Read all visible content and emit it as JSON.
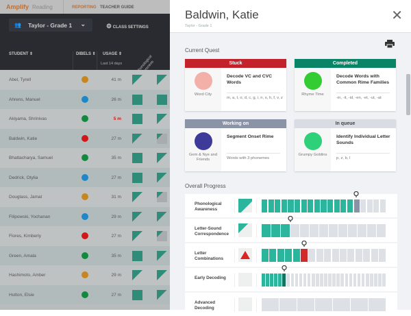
{
  "nav": {
    "brand": "Amplify",
    "product": "Reading",
    "tabs": [
      "REPORTING",
      "TEACHER GUIDE"
    ]
  },
  "toolbar": {
    "class": "Taylor - Grade 1",
    "settings": "CLASS SETTINGS"
  },
  "table": {
    "headers": {
      "student": "STUDENT ⇕",
      "dibels": "DIBELS ⇕",
      "usage": "USAGE ⇕",
      "usage_sub": "Last 14 days",
      "skill": "Phonological Awareness"
    },
    "rows": [
      {
        "name": "Abel, Tyrell",
        "dibels": "#c8861e",
        "usage": "41 m",
        "s1": "half",
        "s2": "half"
      },
      {
        "name": "Ahrens, Manuel",
        "dibels": "#1a88c9",
        "usage": "26 m",
        "s1": "full",
        "s2": "full"
      },
      {
        "name": "Akiyama, Shrinivas",
        "dibels": "#128a3e",
        "usage": "5 m",
        "warn": true,
        "s1": "full",
        "s2": "half"
      },
      {
        "name": "Baldwin, Katie",
        "dibels": "#d01818",
        "usage": "27 m",
        "s1": "half",
        "s2": "part"
      },
      {
        "name": "Bhattacharya, Samuel",
        "dibels": "#128a3e",
        "usage": "35 m",
        "s1": "full",
        "s2": "half"
      },
      {
        "name": "Dedrick, Otylia",
        "dibels": "#1a88c9",
        "usage": "27 m",
        "s1": "full",
        "s2": "half"
      },
      {
        "name": "Douglass, Jamal",
        "dibels": "#c8861e",
        "usage": "31 m",
        "s1": "half",
        "s2": "part"
      },
      {
        "name": "Filipowski, Yochanan",
        "dibels": "#1a88c9",
        "usage": "29 m",
        "s1": "half",
        "s2": "half"
      },
      {
        "name": "Flores, Kimberly",
        "dibels": "#d01818",
        "usage": "27 m",
        "s1": "half",
        "s2": "part"
      },
      {
        "name": "Green, Amala",
        "dibels": "#128a3e",
        "usage": "35 m",
        "s1": "full",
        "s2": "half"
      },
      {
        "name": "Hashimoto, Amber",
        "dibels": "#c8861e",
        "usage": "29 m",
        "s1": "half",
        "s2": "half"
      },
      {
        "name": "Hutton, Elsie",
        "dibels": "#128a3e",
        "usage": "27 m",
        "s1": "full",
        "s2": "half"
      }
    ]
  },
  "panel": {
    "name": "Baldwin, Katie",
    "class": "Taylor - Grade 1",
    "current_quest": "Current Quest",
    "overall_progress": "Overall Progress",
    "cards": [
      {
        "status": "Stuck",
        "color": "#c4222a",
        "game": "Word City",
        "gcolor": "#f3b0a8",
        "title": "Decode VC and CVC Words",
        "detail": "m, a, t, o, d, c, g, i, n, s, h, f, v, z"
      },
      {
        "status": "Completed",
        "color": "#0a8466",
        "game": "Rhyme Time",
        "gcolor": "#33cc33",
        "title": "Decode Words with Common Rime Families",
        "detail": "-in, -it, -id, -en, -et, -ut, -at"
      },
      {
        "status": "Working on",
        "color": "#8b93a6",
        "game": "Gem & Nye and Friends",
        "gcolor": "#3d3a9a",
        "title": "Segment Onset Rime",
        "detail": "Words with 3 phonemes"
      },
      {
        "status": "In queue",
        "color": "#d9dce2",
        "dark": true,
        "game": "Grumpy Goblins",
        "gcolor": "#2fd07a",
        "title": "Identify Individual Letter Sounds",
        "detail": "p, z, b, l"
      }
    ],
    "progress": [
      {
        "label": "Phonological Awareness",
        "status": "in-progress",
        "done": 14,
        "current": "cur",
        "total": 19
      },
      {
        "label": "Letter-Sound Correspondence",
        "status": "started",
        "done": 3,
        "current": null,
        "total": 13
      },
      {
        "label": "Letter Combinations",
        "status": "stuck",
        "done": 5,
        "current": "red",
        "total": 16
      },
      {
        "label": "Early Decoding",
        "status": "not-started",
        "done": 5,
        "current": "dk",
        "total": 30
      },
      {
        "label": "Advanced Decoding",
        "status": "not-started",
        "done": 0,
        "current": null,
        "total": 7
      }
    ]
  }
}
